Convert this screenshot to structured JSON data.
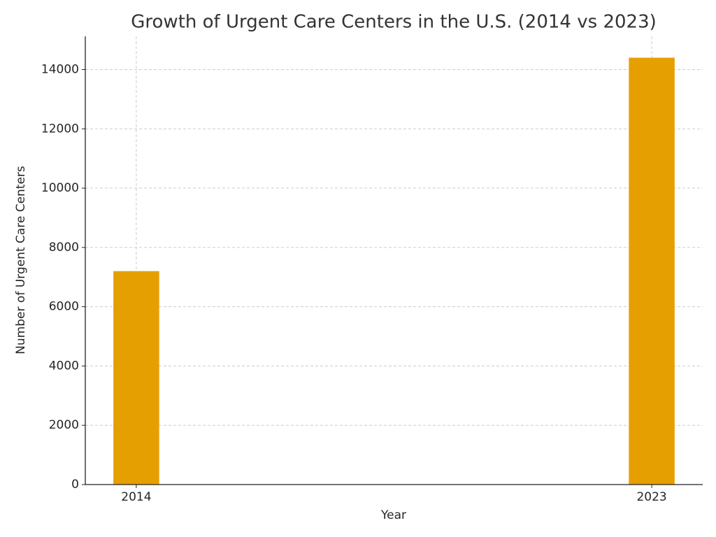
{
  "chart_data": {
    "type": "bar",
    "title": "Growth of Urgent Care Centers in the U.S. (2014 vs 2023)",
    "xlabel": "Year",
    "ylabel": "Number of Urgent Care Centers",
    "x": [
      2014,
      2023
    ],
    "values": [
      7200,
      14400
    ],
    "color": "#e69f00",
    "xlim": [
      2013.11,
      2023.89
    ],
    "xticks": [
      2014,
      2023
    ],
    "ylim": [
      0,
      15120
    ],
    "yticks": [
      0,
      2000,
      4000,
      6000,
      8000,
      10000,
      12000,
      14000
    ],
    "grid": true
  }
}
